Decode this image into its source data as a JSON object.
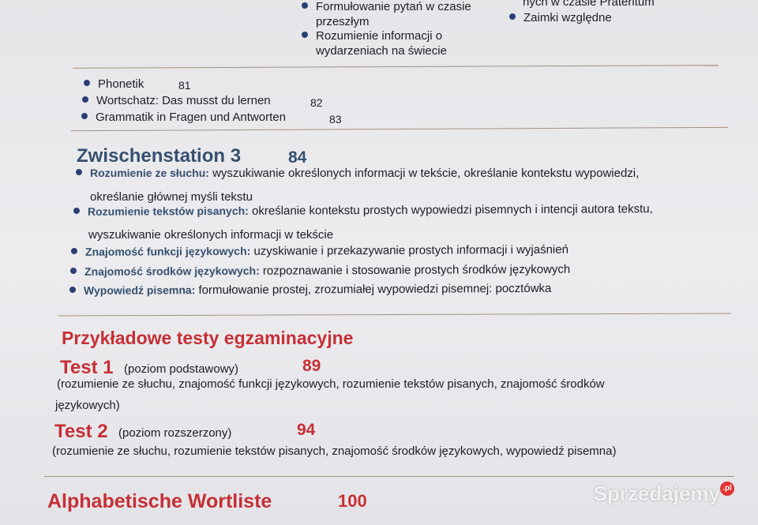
{
  "top": {
    "col2": [
      "Formułowanie pytań w czasie",
      "przeszłym",
      "Rozumienie informacji o",
      "wydarzeniach na świecie"
    ],
    "col3": [
      "nych w czasie Präteritum",
      "Zaimki względne"
    ]
  },
  "list": [
    {
      "label": "Phonetik",
      "page": "81"
    },
    {
      "label": "Wortschatz: Das musst du lernen",
      "page": "82"
    },
    {
      "label": "Grammatik in Fragen und Antworten",
      "page": "83"
    }
  ],
  "zwischenstation": {
    "title": "Zwischenstation 3",
    "page": "84",
    "items": [
      {
        "label": "Rozumienie ze słuchu:",
        "text": " wyszukiwanie określonych informacji w tekście, określanie kontekstu wypowiedzi,",
        "cont": "określanie głównej myśli tekstu"
      },
      {
        "label": "Rozumienie tekstów pisanych:",
        "text": " określanie kontekstu prostych wypowiedzi pisemnych i intencji autora tekstu,",
        "cont": "wyszukiwanie określonych informacji w tekście"
      },
      {
        "label": "Znajomość funkcji językowych:",
        "text": " uzyskiwanie i przekazywanie prostych informacji i wyjaśnień"
      },
      {
        "label": "Znajomość środków językowych:",
        "text": " rozpoznawanie i stosowanie prostych środków językowych"
      },
      {
        "label": "Wypowiedź pisemna:",
        "text": " formułowanie prostej, zrozumiałej wypowiedzi pisemnej: pocztówka"
      }
    ]
  },
  "tests": {
    "title": "Przykładowe testy egzaminacyjne",
    "test1": {
      "title": "Test 1",
      "level": "(poziom podstawowy)",
      "page": "89",
      "desc1": "(rozumienie ze słuchu, znajomość funkcji językowych, rozumienie tekstów pisanych, znajomość środków",
      "desc2": "językowych)"
    },
    "test2": {
      "title": "Test 2",
      "level": "(poziom rozszerzony)",
      "page": "94",
      "desc1": "(rozumienie ze słuchu, rozumienie tekstów pisanych, znajomość środków językowych, wypowiedź pisemna)"
    }
  },
  "wortliste": {
    "title": "Alphabetische Wortliste",
    "page": "100"
  },
  "watermark": {
    "text": "Sprzedajemy",
    "tld": ".pl"
  },
  "colors": {
    "blue": "#35506f",
    "red": "#c62f35",
    "bullet": "#2c3f74"
  }
}
